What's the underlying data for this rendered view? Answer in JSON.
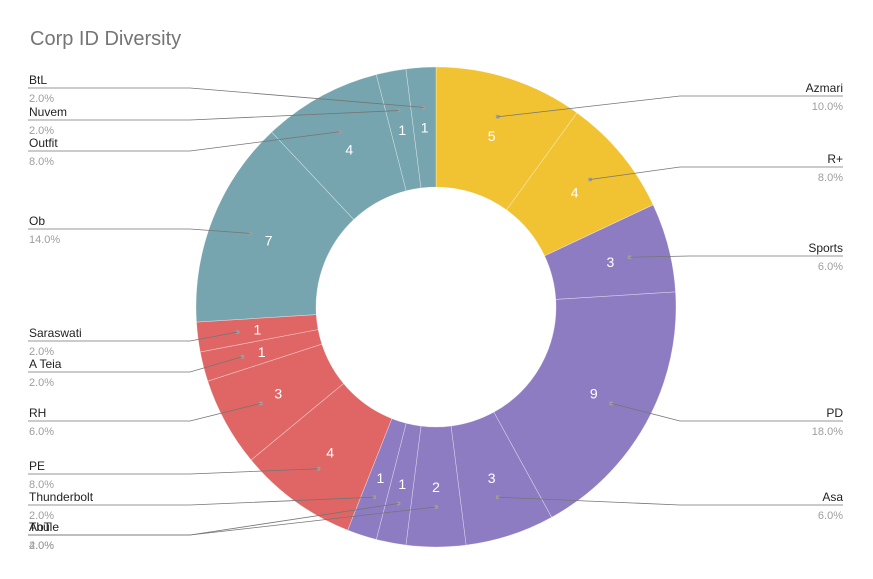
{
  "chart_data": {
    "type": "pie",
    "donut": true,
    "title": "Corp ID Diversity",
    "slices": [
      {
        "label": "Azmari",
        "value": 5,
        "percent": "10.0%",
        "color": "#f1c232"
      },
      {
        "label": "R+",
        "value": 4,
        "percent": "8.0%",
        "color": "#f1c232"
      },
      {
        "label": "Sports",
        "value": 3,
        "percent": "6.0%",
        "color": "#8e7cc3"
      },
      {
        "label": "PD",
        "value": 9,
        "percent": "18.0%",
        "color": "#8e7cc3"
      },
      {
        "label": "Asa",
        "value": 3,
        "percent": "6.0%",
        "color": "#8e7cc3"
      },
      {
        "label": "Thule",
        "value": 2,
        "percent": "4.0%",
        "color": "#8e7cc3"
      },
      {
        "label": "AoT",
        "value": 1,
        "percent": "2.0%",
        "color": "#8e7cc3"
      },
      {
        "label": "Thunderbolt",
        "value": 1,
        "percent": "2.0%",
        "color": "#8e7cc3"
      },
      {
        "label": "PE",
        "value": 4,
        "percent": "8.0%",
        "color": "#e06666"
      },
      {
        "label": "RH",
        "value": 3,
        "percent": "6.0%",
        "color": "#e06666"
      },
      {
        "label": "A Teia",
        "value": 1,
        "percent": "2.0%",
        "color": "#e06666"
      },
      {
        "label": "Saraswati",
        "value": 1,
        "percent": "2.0%",
        "color": "#e06666"
      },
      {
        "label": "Ob",
        "value": 7,
        "percent": "14.0%",
        "color": "#76a5af"
      },
      {
        "label": "Outfit",
        "value": 4,
        "percent": "8.0%",
        "color": "#76a5af"
      },
      {
        "label": "Nuvem",
        "value": 1,
        "percent": "2.0%",
        "color": "#76a5af"
      },
      {
        "label": "BtL",
        "value": 1,
        "percent": "2.0%",
        "color": "#76a5af"
      }
    ],
    "legend": "leader-lines"
  }
}
